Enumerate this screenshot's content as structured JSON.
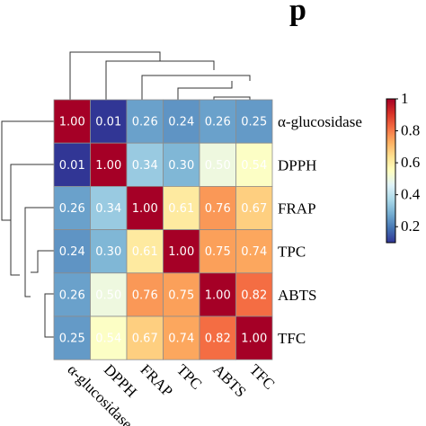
{
  "chart_data": {
    "type": "heatmap",
    "title": "p",
    "rows": [
      "α-glucosidase",
      "DPPH",
      "FRAP",
      "TPC",
      "ABTS",
      "TFC"
    ],
    "cols": [
      "α-glucosidase",
      "DPPH",
      "FRAP",
      "TPC",
      "ABTS",
      "TFC"
    ],
    "values": [
      [
        1.0,
        0.01,
        0.26,
        0.24,
        0.26,
        0.25
      ],
      [
        0.01,
        1.0,
        0.34,
        0.3,
        0.5,
        0.54
      ],
      [
        0.26,
        0.34,
        1.0,
        0.61,
        0.76,
        0.67
      ],
      [
        0.24,
        0.3,
        0.61,
        1.0,
        0.75,
        0.74
      ],
      [
        0.26,
        0.5,
        0.76,
        0.75,
        1.0,
        0.82
      ],
      [
        0.25,
        0.54,
        0.67,
        0.74,
        0.82,
        1.0
      ]
    ],
    "value_labels": [
      [
        "1.00",
        "0.01",
        "0.26",
        "0.24",
        "0.26",
        "0.25"
      ],
      [
        "0.01",
        "1.00",
        "0.34",
        "0.30",
        "0.50",
        "0.54"
      ],
      [
        "0.26",
        "0.34",
        "1.00",
        "0.61",
        "0.76",
        "0.67"
      ],
      [
        "0.24",
        "0.30",
        "0.61",
        "1.00",
        "0.75",
        "0.74"
      ],
      [
        "0.26",
        "0.50",
        "0.76",
        "0.75",
        "1.00",
        "0.82"
      ],
      [
        "0.25",
        "0.54",
        "0.67",
        "0.74",
        "0.82",
        "1.00"
      ]
    ],
    "color_scale": {
      "min": 0.1,
      "max": 1.0,
      "ticks": [
        "0.2",
        "0.4",
        "0.6",
        "0.8",
        "1"
      ],
      "colors": [
        "#313695",
        "#4575b4",
        "#74add1",
        "#abd9e9",
        "#e0f3f8",
        "#ffffbf",
        "#fee090",
        "#fdae61",
        "#f46d43",
        "#d73027",
        "#a50026"
      ]
    },
    "legend_placement": "right",
    "dendrograms": [
      "top",
      "left"
    ]
  }
}
